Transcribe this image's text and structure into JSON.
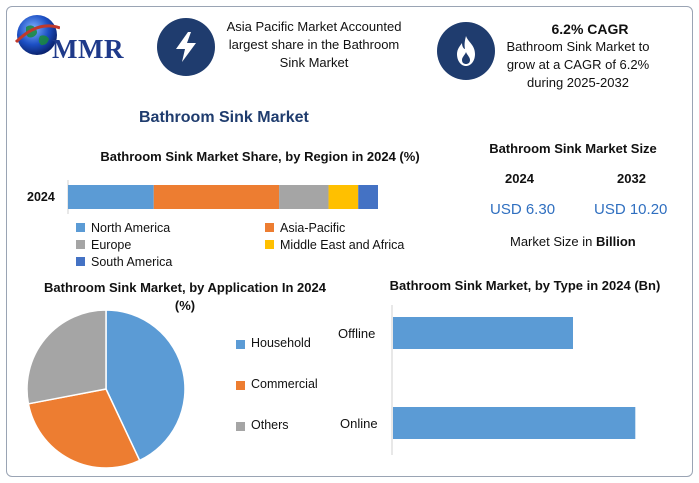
{
  "brand": {
    "name": "MMR"
  },
  "info": [
    {
      "icon": "lightning-icon",
      "text": "Asia Pacific Market Accounted largest share in the Bathroom Sink Market"
    },
    {
      "icon": "flame-icon",
      "heading": "6.2% CAGR",
      "text": "Bathroom Sink Market to grow at a CAGR of 6.2% during 2025-2032"
    }
  ],
  "main_title": "Bathroom Sink Market",
  "market_size": {
    "title": "Bathroom Sink Market Size",
    "years": [
      "2024",
      "2032"
    ],
    "values": [
      "USD 6.30",
      "USD 10.20"
    ],
    "unit_prefix": "Market Size in ",
    "unit": "Billion"
  },
  "colors": {
    "blue": "#5b9bd5",
    "orange": "#ed7d31",
    "gray": "#a5a5a5",
    "yellow": "#ffc000",
    "darkblue": "#4472c4"
  },
  "chart_data": [
    {
      "type": "bar",
      "orientation": "horizontal-stacked",
      "title": "Bathroom Sink Market Share, by Region in 2024 (%)",
      "categories": [
        "2024"
      ],
      "series": [
        {
          "name": "North America",
          "values": [
            26
          ],
          "color": "#5b9bd5"
        },
        {
          "name": "Asia-Pacific",
          "values": [
            38
          ],
          "color": "#ed7d31"
        },
        {
          "name": "Europe",
          "values": [
            15
          ],
          "color": "#a5a5a5"
        },
        {
          "name": "Middle East and Africa",
          "values": [
            9
          ],
          "color": "#ffc000"
        },
        {
          "name": "South America",
          "values": [
            6
          ],
          "color": "#4472c4"
        }
      ],
      "xlim": [
        0,
        94
      ],
      "legend": "bottom"
    },
    {
      "type": "pie",
      "title": "Bathroom Sink Market, by Application In 2024 (%)",
      "slices": [
        {
          "name": "Household",
          "value": 43,
          "color": "#5b9bd5"
        },
        {
          "name": "Commercial",
          "value": 29,
          "color": "#ed7d31"
        },
        {
          "name": "Others",
          "value": 28,
          "color": "#a5a5a5"
        }
      ],
      "legend": "right"
    },
    {
      "type": "bar",
      "orientation": "horizontal",
      "title": "Bathroom Sink Market, by Type in 2024 (Bn)",
      "categories": [
        "Offline",
        "Online"
      ],
      "values": [
        2.6,
        3.5
      ],
      "xlim": [
        0,
        3.9
      ],
      "color": "#5b9bd5"
    }
  ]
}
